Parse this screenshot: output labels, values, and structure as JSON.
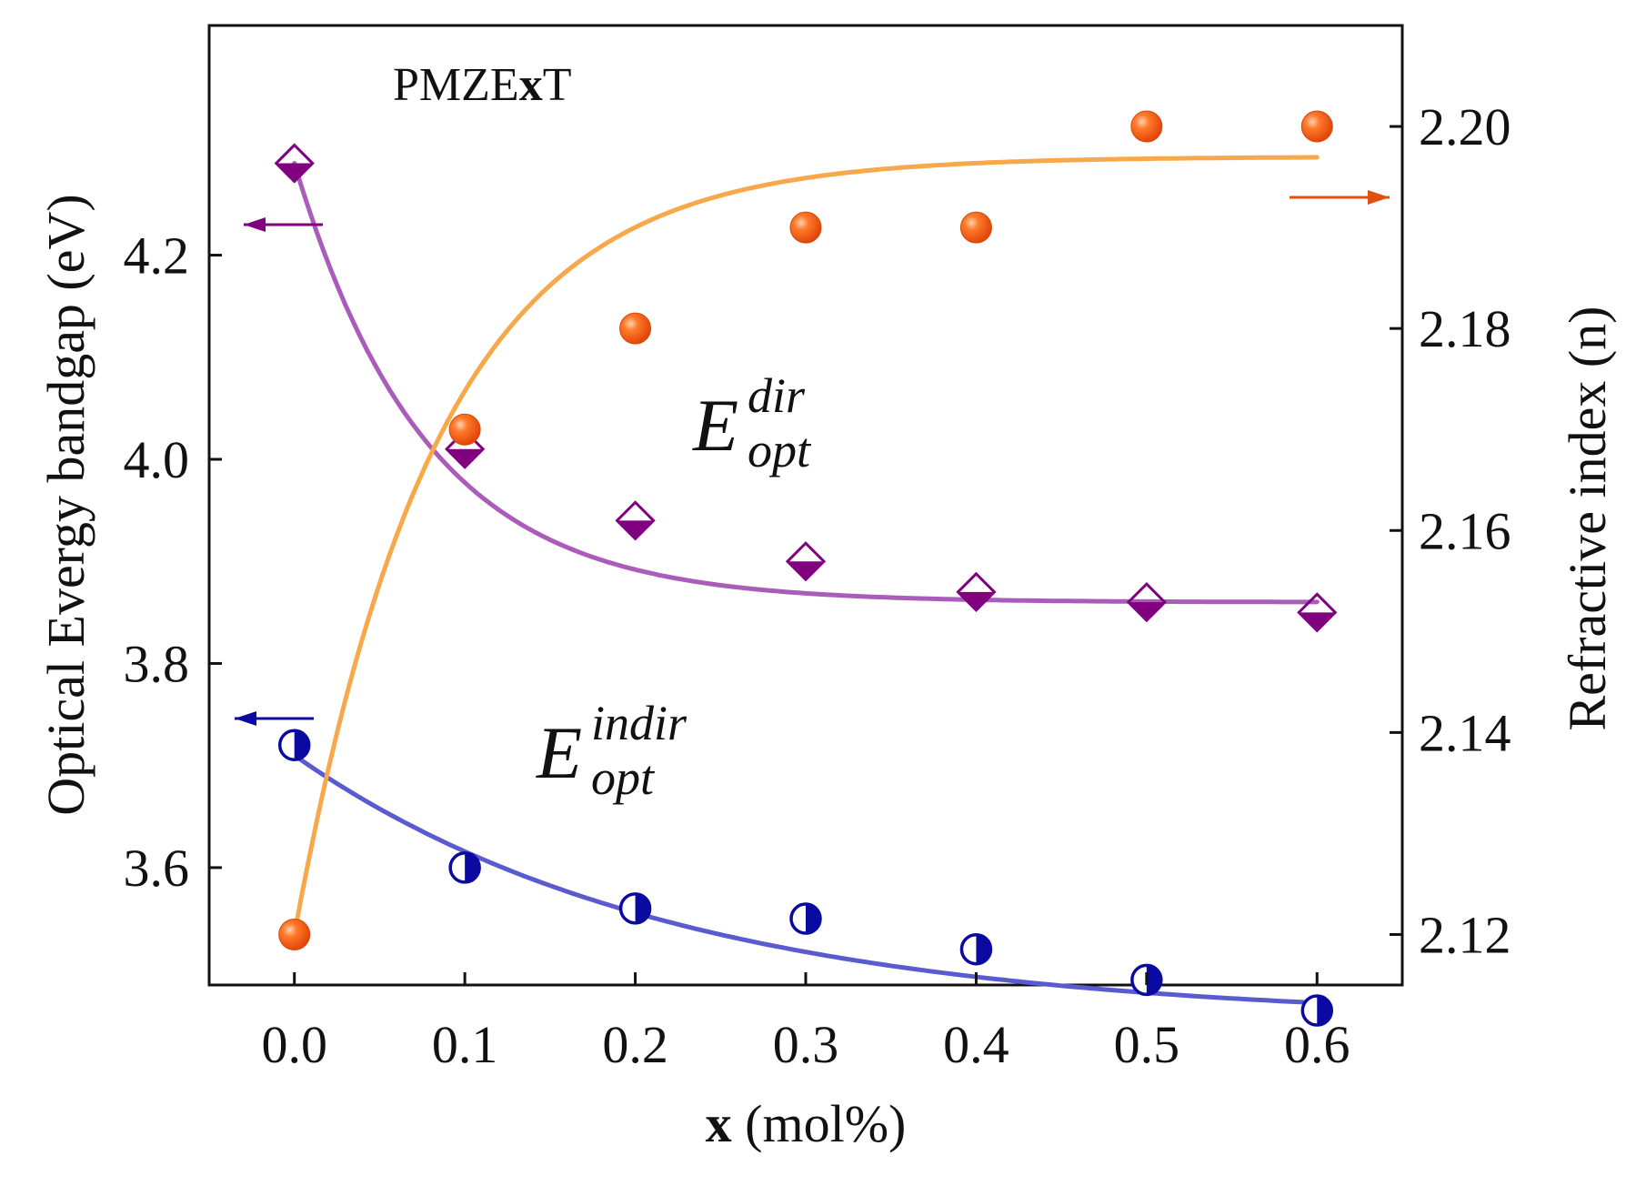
{
  "chart_data": {
    "type": "scatter",
    "title": "PMZE",
    "title_bold": "x",
    "title_suffix": "T",
    "x": [
      0.0,
      0.1,
      0.2,
      0.3,
      0.4,
      0.5,
      0.6
    ],
    "x_tick_labels": [
      "0.0",
      "0.1",
      "0.2",
      "0.3",
      "0.4",
      "0.5",
      "0.6"
    ],
    "xlabel_bold": "x",
    "xlabel": " (mol%)",
    "xlim": [
      -0.05,
      0.65
    ],
    "ylabel_left": "Optical Evergy bandgap (eV)",
    "ylim_left": [
      3.485,
      4.425
    ],
    "y_left_ticks": [
      3.6,
      3.8,
      4.0,
      4.2
    ],
    "y_left_tick_labels": [
      "3.6",
      "3.8",
      "4.0",
      "4.2"
    ],
    "ylabel_right": "Refractive index (n)",
    "ylim_right": [
      2.115,
      2.21
    ],
    "y_right_ticks": [
      2.12,
      2.14,
      2.16,
      2.18,
      2.2
    ],
    "y_right_tick_labels": [
      "2.12",
      "2.14",
      "2.16",
      "2.18",
      "2.20"
    ],
    "series": [
      {
        "name": "E_opt^dir",
        "label_main": "E",
        "label_sup": "dir",
        "label_sub": "opt",
        "axis": "left",
        "marker": "half-filled-diamond",
        "color": "#800080",
        "fit_color": "#a95cb8",
        "values": [
          4.29,
          4.01,
          3.94,
          3.9,
          3.87,
          3.86,
          3.85
        ],
        "fit": {
          "a": 0.43,
          "b": 3.86,
          "k": 13.0
        }
      },
      {
        "name": "E_opt^indir",
        "label_main": "E",
        "label_sup": "indir",
        "label_sub": "opt",
        "axis": "left",
        "marker": "half-filled-circle",
        "color": "#0a0aa0",
        "fit_color": "#5b5bd0",
        "values": [
          3.72,
          3.6,
          3.56,
          3.55,
          3.52,
          3.49,
          3.46
        ],
        "fit": {
          "a": 0.26,
          "b": 3.45,
          "k": 4.5
        }
      },
      {
        "name": "Refractive index",
        "axis": "right",
        "marker": "filled-sphere",
        "color": "#f05a0a",
        "fit_color": "#f7a84a",
        "values": [
          2.12,
          2.17,
          2.18,
          2.19,
          2.19,
          2.2,
          2.2
        ],
        "fit": {
          "a": -0.077,
          "b": 2.197,
          "k": 12.0
        }
      }
    ],
    "arrows": [
      {
        "series": "E_opt^dir",
        "direction": "left",
        "color": "#800080"
      },
      {
        "series": "E_opt^indir",
        "direction": "left",
        "color": "#0a0aa0"
      },
      {
        "series": "Refractive index",
        "direction": "right",
        "color": "#e05010"
      }
    ]
  }
}
